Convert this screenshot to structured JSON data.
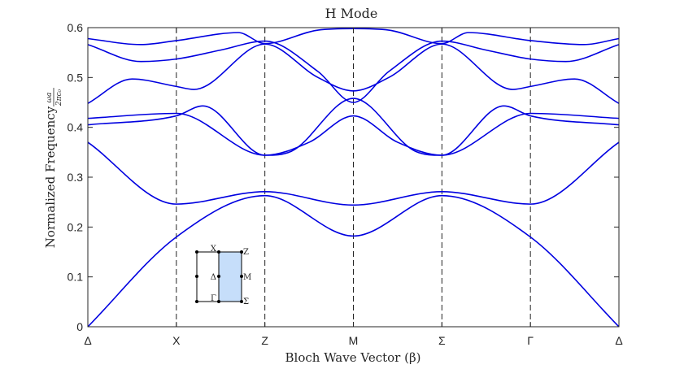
{
  "chart_data": {
    "type": "line",
    "title": "H Mode",
    "xlabel": "Bloch Wave Vector (β)",
    "ylabel": "Normalized Frequency",
    "ylabel_fraction": {
      "numerator": "ωa",
      "denominator": "2πc₀"
    },
    "x_ticks": [
      "Δ",
      "X",
      "Z",
      "M",
      "Σ",
      "Γ",
      "Δ"
    ],
    "y_ticks": [
      "0",
      "0.1",
      "0.2",
      "0.3",
      "0.4",
      "0.5",
      "0.6"
    ],
    "ylim": [
      0,
      0.6
    ],
    "xlim": [
      0,
      6
    ],
    "grid": false,
    "line_color": "#0000e0",
    "inset_labels": {
      "X": "X",
      "Z": "Z",
      "Delta": "Δ",
      "M": "M",
      "Gamma": "Γ",
      "Sigma": "Σ"
    },
    "inset_fill": "#c6defa",
    "bands": [
      {
        "x": [
          0,
          1,
          2,
          3,
          4,
          5,
          6
        ],
        "y": [
          0,
          0.18,
          0.263,
          0.182,
          0.263,
          0.18,
          0
        ]
      },
      {
        "x": [
          0,
          1,
          2,
          3,
          4,
          5,
          6
        ],
        "y": [
          0.37,
          0.246,
          0.271,
          0.244,
          0.271,
          0.246,
          0.37
        ]
      },
      {
        "x": [
          0,
          1,
          1.3,
          2,
          2.5,
          3,
          3.5,
          4,
          4.7,
          5,
          6
        ],
        "y": [
          0.405,
          0.423,
          0.443,
          0.344,
          0.37,
          0.423,
          0.37,
          0.344,
          0.443,
          0.423,
          0.405
        ]
      },
      {
        "x": [
          0,
          1,
          2,
          2.3,
          3,
          3.7,
          4,
          5,
          6
        ],
        "y": [
          0.418,
          0.428,
          0.344,
          0.352,
          0.458,
          0.352,
          0.344,
          0.428,
          0.418
        ]
      },
      {
        "x": [
          0,
          0.5,
          1,
          1.2,
          2,
          2.6,
          3,
          3.4,
          4,
          4.8,
          5,
          5.5,
          6
        ],
        "y": [
          0.448,
          0.497,
          0.482,
          0.476,
          0.567,
          0.5,
          0.473,
          0.5,
          0.567,
          0.476,
          0.482,
          0.497,
          0.448
        ]
      },
      {
        "x": [
          0,
          0.6,
          1,
          1.5,
          2,
          2.6,
          3,
          3.4,
          4,
          4.5,
          5,
          5.4,
          6
        ],
        "y": [
          0.566,
          0.532,
          0.537,
          0.555,
          0.573,
          0.512,
          0.45,
          0.512,
          0.573,
          0.555,
          0.537,
          0.532,
          0.566
        ]
      },
      {
        "x": [
          0,
          0.6,
          1,
          1.7,
          2,
          2.6,
          3,
          3.4,
          4,
          4.3,
          5,
          5.6,
          6
        ],
        "y": [
          0.578,
          0.566,
          0.574,
          0.59,
          0.568,
          0.595,
          0.598,
          0.595,
          0.568,
          0.59,
          0.574,
          0.566,
          0.578
        ]
      }
    ]
  }
}
